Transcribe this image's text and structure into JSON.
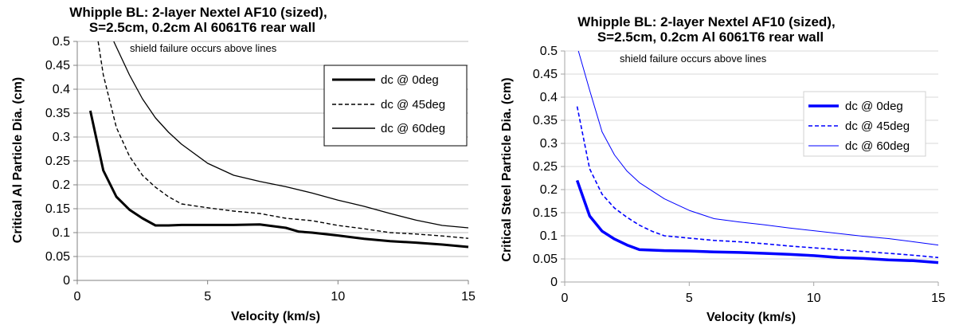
{
  "chart_data": [
    {
      "type": "line",
      "title_lines": [
        "Whipple BL: 2-layer Nextel AF10 (sized),",
        "S=2.5cm, 0.2cm Al 6061T6 rear wall"
      ],
      "annotation": "shield failure occurs above lines",
      "xlabel": "Velocity (km/s)",
      "ylabel": "Critical Al Particle Dia. (cm)",
      "xlim": [
        0,
        15
      ],
      "ylim": [
        0,
        0.5
      ],
      "xticks": [
        0,
        5,
        10,
        15
      ],
      "yticks": [
        0,
        0.05,
        0.1,
        0.15,
        0.2,
        0.25,
        0.3,
        0.35,
        0.4,
        0.45,
        0.5
      ],
      "ytick_labels": [
        "0",
        "0.05",
        "0.1",
        "0.15",
        "0.2",
        "0.25",
        "0.3",
        "0.35",
        "0.4",
        "0.45",
        "0.5"
      ],
      "grid": "horizontal",
      "legend": "top-right",
      "series": [
        {
          "name": "dc @ 0deg",
          "color": "#000000",
          "style": "solid-thick",
          "points": [
            [
              0.5,
              0.355
            ],
            [
              1,
              0.23
            ],
            [
              1.5,
              0.175
            ],
            [
              2,
              0.148
            ],
            [
              2.5,
              0.13
            ],
            [
              3,
              0.115
            ],
            [
              3.5,
              0.115
            ],
            [
              4,
              0.116
            ],
            [
              5,
              0.116
            ],
            [
              6,
              0.116
            ],
            [
              7,
              0.117
            ],
            [
              8,
              0.11
            ],
            [
              8.5,
              0.102
            ],
            [
              9,
              0.1
            ],
            [
              10,
              0.094
            ],
            [
              11,
              0.087
            ],
            [
              12,
              0.082
            ],
            [
              13,
              0.079
            ],
            [
              14,
              0.075
            ],
            [
              15,
              0.07
            ]
          ]
        },
        {
          "name": "dc @ 45deg",
          "color": "#000000",
          "style": "dashed",
          "points": [
            [
              0.8,
              0.5
            ],
            [
              1,
              0.43
            ],
            [
              1.5,
              0.32
            ],
            [
              2,
              0.26
            ],
            [
              2.5,
              0.22
            ],
            [
              3,
              0.195
            ],
            [
              3.5,
              0.175
            ],
            [
              4,
              0.16
            ],
            [
              5,
              0.152
            ],
            [
              6,
              0.145
            ],
            [
              7,
              0.14
            ],
            [
              8,
              0.13
            ],
            [
              9,
              0.125
            ],
            [
              10,
              0.115
            ],
            [
              11,
              0.108
            ],
            [
              12,
              0.1
            ],
            [
              13,
              0.097
            ],
            [
              14,
              0.093
            ],
            [
              15,
              0.088
            ]
          ]
        },
        {
          "name": "dc @ 60deg",
          "color": "#000000",
          "style": "solid-thin",
          "points": [
            [
              1.4,
              0.5
            ],
            [
              2,
              0.43
            ],
            [
              2.5,
              0.38
            ],
            [
              3,
              0.34
            ],
            [
              3.5,
              0.31
            ],
            [
              4,
              0.285
            ],
            [
              5,
              0.245
            ],
            [
              6,
              0.22
            ],
            [
              7,
              0.207
            ],
            [
              8,
              0.196
            ],
            [
              9,
              0.183
            ],
            [
              10,
              0.168
            ],
            [
              11,
              0.155
            ],
            [
              12,
              0.14
            ],
            [
              13,
              0.126
            ],
            [
              14,
              0.115
            ],
            [
              15,
              0.11
            ]
          ]
        }
      ]
    },
    {
      "type": "line",
      "title_lines": [
        "Whipple BL: 2-layer Nextel AF10 (sized),",
        "S=2.5cm, 0.2cm Al 6061T6 rear wall"
      ],
      "annotation": "shield failure occurs above lines",
      "xlabel": "Velocity (km/s)",
      "ylabel": "Critical Steel Particle Dia. (cm)",
      "xlim": [
        0,
        15
      ],
      "ylim": [
        0,
        0.5
      ],
      "xticks": [
        0,
        5,
        10,
        15
      ],
      "yticks": [
        0,
        0.05,
        0.1,
        0.15,
        0.2,
        0.25,
        0.3,
        0.35,
        0.4,
        0.45,
        0.5
      ],
      "ytick_labels": [
        "0",
        "0.05",
        "0.1",
        "0.15",
        "0.2",
        "0.25",
        "0.3",
        "0.35",
        "0.4",
        "0.45",
        "0.5"
      ],
      "grid": "horizontal",
      "legend": "top-right",
      "series": [
        {
          "name": "dc @ 0deg",
          "color": "#0000ff",
          "style": "solid-thick",
          "points": [
            [
              0.5,
              0.22
            ],
            [
              1,
              0.143
            ],
            [
              1.5,
              0.11
            ],
            [
              2,
              0.093
            ],
            [
              2.5,
              0.08
            ],
            [
              3,
              0.07
            ],
            [
              4,
              0.068
            ],
            [
              5,
              0.067
            ],
            [
              6,
              0.065
            ],
            [
              7,
              0.064
            ],
            [
              8,
              0.062
            ],
            [
              9,
              0.06
            ],
            [
              10,
              0.057
            ],
            [
              11,
              0.053
            ],
            [
              12,
              0.051
            ],
            [
              13,
              0.048
            ],
            [
              14,
              0.046
            ],
            [
              15,
              0.042
            ]
          ]
        },
        {
          "name": "dc @ 45deg",
          "color": "#0000ff",
          "style": "dashed",
          "points": [
            [
              0.5,
              0.38
            ],
            [
              1,
              0.245
            ],
            [
              1.5,
              0.19
            ],
            [
              2,
              0.16
            ],
            [
              2.5,
              0.14
            ],
            [
              3,
              0.123
            ],
            [
              3.5,
              0.11
            ],
            [
              4,
              0.1
            ],
            [
              5,
              0.095
            ],
            [
              6,
              0.09
            ],
            [
              7,
              0.087
            ],
            [
              8,
              0.083
            ],
            [
              9,
              0.078
            ],
            [
              10,
              0.074
            ],
            [
              11,
              0.07
            ],
            [
              12,
              0.066
            ],
            [
              13,
              0.062
            ],
            [
              14,
              0.058
            ],
            [
              15,
              0.053
            ]
          ]
        },
        {
          "name": "dc @ 60deg",
          "color": "#0000ff",
          "style": "solid-thin",
          "points": [
            [
              0.55,
              0.5
            ],
            [
              1,
              0.415
            ],
            [
              1.5,
              0.325
            ],
            [
              2,
              0.275
            ],
            [
              2.5,
              0.24
            ],
            [
              3,
              0.215
            ],
            [
              4,
              0.18
            ],
            [
              5,
              0.155
            ],
            [
              6,
              0.137
            ],
            [
              7,
              0.13
            ],
            [
              8,
              0.124
            ],
            [
              9,
              0.117
            ],
            [
              10,
              0.111
            ],
            [
              11,
              0.105
            ],
            [
              12,
              0.099
            ],
            [
              13,
              0.094
            ],
            [
              14,
              0.087
            ],
            [
              15,
              0.08
            ]
          ]
        }
      ]
    }
  ]
}
